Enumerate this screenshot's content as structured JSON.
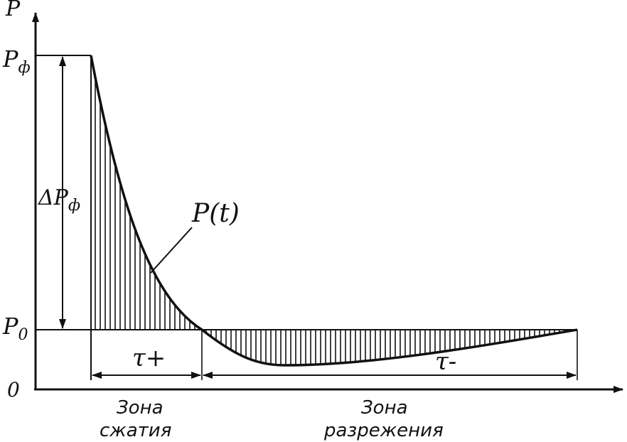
{
  "diagram": {
    "axes": {
      "y_label": "P",
      "origin_label": "0"
    },
    "levels": {
      "peak_label_main": "P",
      "peak_label_sub": "ф",
      "ambient_label_main": "P",
      "ambient_label_sub": "0",
      "delta_label_main": "ΔP",
      "delta_label_sub": "ф"
    },
    "curve_label": "P(t)",
    "durations": {
      "positive": "τ+",
      "negative": "τ-"
    },
    "zones": {
      "compression_line1": "Зона",
      "compression_line2": "сжатия",
      "rarefaction_line1": "Зона",
      "rarefaction_line2": "разрежения"
    },
    "colors": {
      "ink": "#111111",
      "background": "#ffffff"
    }
  }
}
